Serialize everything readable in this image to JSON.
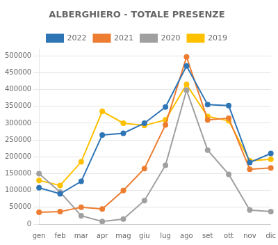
{
  "chart_data": {
    "type": "line",
    "title": "ALBERGHIERO - TOTALE PRESENZE",
    "categories": [
      "gen",
      "feb",
      "mar",
      "apr",
      "mag",
      "giu",
      "lug",
      "ago",
      "set",
      "ott",
      "nov",
      "dic"
    ],
    "series": [
      {
        "name": "2022",
        "color": "#2e75b6",
        "values": [
          108000,
          90000,
          127000,
          265000,
          270000,
          300000,
          348000,
          470000,
          355000,
          352000,
          183000,
          210000
        ]
      },
      {
        "name": "2021",
        "color": "#ed7d31",
        "values": [
          35000,
          37000,
          50000,
          45000,
          100000,
          165000,
          295000,
          497000,
          310000,
          315000,
          163000,
          167000
        ]
      },
      {
        "name": "2020",
        "color": "#a0a0a0",
        "values": [
          150000,
          95000,
          25000,
          8000,
          15000,
          70000,
          175000,
          398000,
          220000,
          148000,
          42000,
          37000
        ]
      },
      {
        "name": "2019",
        "color": "#ffc000",
        "values": [
          130000,
          115000,
          185000,
          335000,
          300000,
          293000,
          310000,
          415000,
          320000,
          307000,
          188000,
          193000
        ]
      }
    ],
    "ylim": [
      0,
      520000
    ],
    "yticks": [
      0,
      50000,
      100000,
      150000,
      200000,
      250000,
      300000,
      350000,
      400000,
      450000,
      500000
    ],
    "grid": "y",
    "legend": "top",
    "marker": "circle"
  }
}
